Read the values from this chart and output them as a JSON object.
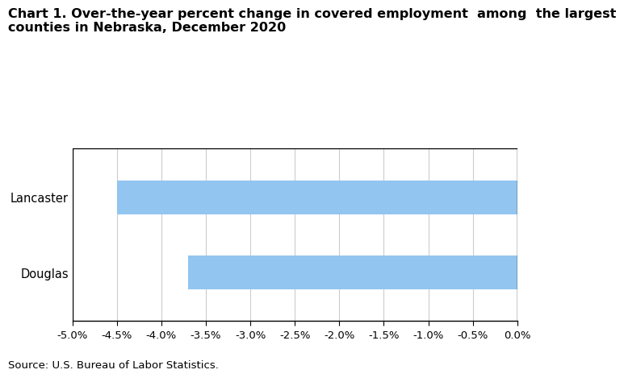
{
  "title_line1": "Chart 1. Over-the-year percent change in covered employment  among  the largest",
  "title_line2": "counties in Nebraska, December 2020",
  "categories": [
    "Lancaster",
    "Douglas"
  ],
  "values": [
    -4.5,
    -3.7
  ],
  "bar_color": "#92C5F0",
  "xlim": [
    -5.0,
    0.0
  ],
  "xtick_values": [
    -5.0,
    -4.5,
    -4.0,
    -3.5,
    -3.0,
    -2.5,
    -2.0,
    -1.5,
    -1.0,
    -0.5,
    0.0
  ],
  "source_text": "Source: U.S. Bureau of Labor Statistics.",
  "background_color": "#ffffff",
  "grid_color": "#cccccc",
  "bar_height": 0.45,
  "title_fontsize": 11.5,
  "tick_fontsize": 9.5,
  "source_fontsize": 9.5
}
